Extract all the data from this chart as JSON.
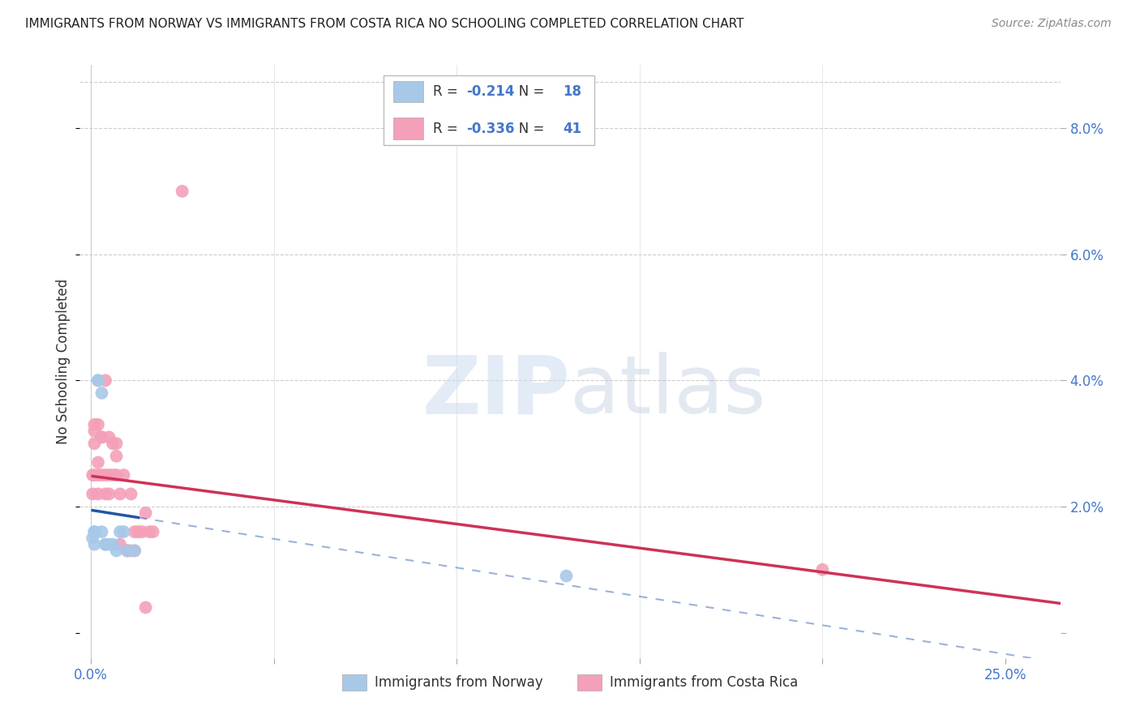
{
  "title": "IMMIGRANTS FROM NORWAY VS IMMIGRANTS FROM COSTA RICA NO SCHOOLING COMPLETED CORRELATION CHART",
  "source": "Source: ZipAtlas.com",
  "ylabel": "No Schooling Completed",
  "ytick_vals": [
    0.0,
    0.02,
    0.04,
    0.06,
    0.08
  ],
  "ytick_labels": [
    "",
    "2.0%",
    "4.0%",
    "6.0%",
    "8.0%"
  ],
  "xtick_vals": [
    0.0,
    0.05,
    0.1,
    0.15,
    0.2,
    0.25
  ],
  "xtick_labels": [
    "0.0%",
    "",
    "",
    "",
    "",
    "25.0%"
  ],
  "xlim": [
    -0.003,
    0.265
  ],
  "ylim": [
    -0.004,
    0.09
  ],
  "norway_R": "-0.214",
  "norway_N": "18",
  "costarica_R": "-0.336",
  "costarica_N": "41",
  "norway_color": "#a8c8e8",
  "costarica_color": "#f4a0b8",
  "norway_line_color": "#2255aa",
  "costarica_line_color": "#cc3355",
  "norway_x": [
    0.0005,
    0.001,
    0.001,
    0.001,
    0.002,
    0.002,
    0.003,
    0.003,
    0.004,
    0.004,
    0.005,
    0.006,
    0.007,
    0.008,
    0.009,
    0.01,
    0.012,
    0.13
  ],
  "norway_y": [
    0.015,
    0.016,
    0.014,
    0.016,
    0.04,
    0.04,
    0.038,
    0.016,
    0.014,
    0.014,
    0.014,
    0.014,
    0.013,
    0.016,
    0.016,
    0.013,
    0.013,
    0.009
  ],
  "costarica_x": [
    0.0005,
    0.0005,
    0.001,
    0.001,
    0.001,
    0.001,
    0.002,
    0.002,
    0.002,
    0.002,
    0.003,
    0.003,
    0.003,
    0.004,
    0.004,
    0.004,
    0.005,
    0.005,
    0.005,
    0.006,
    0.006,
    0.007,
    0.007,
    0.007,
    0.008,
    0.008,
    0.009,
    0.01,
    0.01,
    0.011,
    0.011,
    0.012,
    0.012,
    0.013,
    0.014,
    0.015,
    0.015,
    0.016,
    0.017,
    0.2,
    0.025
  ],
  "costarica_y": [
    0.025,
    0.022,
    0.025,
    0.032,
    0.033,
    0.03,
    0.025,
    0.033,
    0.022,
    0.027,
    0.031,
    0.031,
    0.025,
    0.025,
    0.022,
    0.04,
    0.025,
    0.022,
    0.031,
    0.025,
    0.03,
    0.025,
    0.028,
    0.03,
    0.014,
    0.022,
    0.025,
    0.013,
    0.013,
    0.013,
    0.022,
    0.013,
    0.016,
    0.016,
    0.016,
    0.019,
    0.004,
    0.016,
    0.016,
    0.01,
    0.07
  ],
  "norway_line_x_start": 0.0005,
  "norway_line_x_solid_end": 0.013,
  "norway_line_x_dash_end": 0.265,
  "costarica_line_x_start": 0.0005,
  "costarica_line_x_end": 0.265
}
